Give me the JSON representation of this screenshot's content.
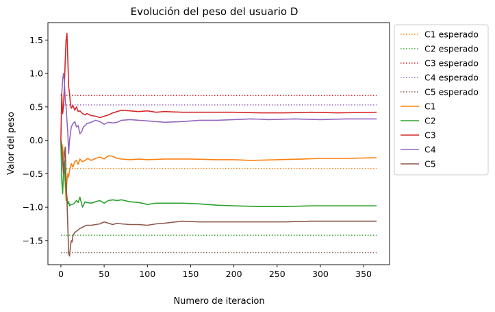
{
  "chart_data": {
    "type": "line",
    "title": "Evolución del peso del usuario D",
    "xlabel": "Numero de iteracion",
    "ylabel": "Valor del peso",
    "xlim": [
      -15,
      380
    ],
    "ylim": [
      -1.86,
      1.76
    ],
    "xticks": [
      0,
      50,
      100,
      150,
      200,
      250,
      300,
      350
    ],
    "yticks": [
      -1.5,
      -1.0,
      -0.5,
      0.0,
      0.5,
      1.0,
      1.5
    ],
    "ytick_labels": [
      "−1.5",
      "−1.0",
      "−0.5",
      "0.0",
      "0.5",
      "1.0",
      "1.5"
    ],
    "grid": false,
    "legend_position": "outside-right-top",
    "expected_lines": [
      {
        "name": "C1 esperado",
        "color": "#ff7f0e",
        "value": -0.42,
        "x": [
          0,
          365
        ]
      },
      {
        "name": "C2 esperado",
        "color": "#2ca02c",
        "value": -1.42,
        "x": [
          0,
          365
        ]
      },
      {
        "name": "C3 esperado",
        "color": "#d62728",
        "value": 0.67,
        "x": [
          0,
          365
        ]
      },
      {
        "name": "C4 esperado",
        "color": "#9467bd",
        "value": 0.53,
        "x": [
          0,
          365
        ]
      },
      {
        "name": "C5 esperado",
        "color": "#8c564b",
        "value": -1.68,
        "x": [
          0,
          365
        ]
      }
    ],
    "series": [
      {
        "name": "C1",
        "color": "#ff7f0e",
        "points": [
          [
            0,
            0.0
          ],
          [
            2,
            -0.1
          ],
          [
            4,
            -0.4
          ],
          [
            6,
            -0.9
          ],
          [
            7,
            -0.6
          ],
          [
            8,
            -0.5
          ],
          [
            9,
            -0.55
          ],
          [
            10,
            -0.45
          ],
          [
            12,
            -0.35
          ],
          [
            14,
            -0.4
          ],
          [
            16,
            -0.32
          ],
          [
            18,
            -0.3
          ],
          [
            20,
            -0.36
          ],
          [
            22,
            -0.28
          ],
          [
            25,
            -0.32
          ],
          [
            28,
            -0.3
          ],
          [
            31,
            -0.27
          ],
          [
            35,
            -0.3
          ],
          [
            40,
            -0.27
          ],
          [
            45,
            -0.25
          ],
          [
            50,
            -0.28
          ],
          [
            55,
            -0.23
          ],
          [
            60,
            -0.24
          ],
          [
            65,
            -0.27
          ],
          [
            70,
            -0.28
          ],
          [
            80,
            -0.29
          ],
          [
            90,
            -0.28
          ],
          [
            100,
            -0.29
          ],
          [
            120,
            -0.28
          ],
          [
            150,
            -0.28
          ],
          [
            180,
            -0.29
          ],
          [
            200,
            -0.29
          ],
          [
            220,
            -0.3
          ],
          [
            250,
            -0.29
          ],
          [
            280,
            -0.28
          ],
          [
            300,
            -0.27
          ],
          [
            330,
            -0.27
          ],
          [
            365,
            -0.26
          ]
        ]
      },
      {
        "name": "C2",
        "color": "#2ca02c",
        "points": [
          [
            0,
            0.0
          ],
          [
            1,
            -0.6
          ],
          [
            2,
            -0.8
          ],
          [
            3,
            -0.5
          ],
          [
            4,
            -0.3
          ],
          [
            5,
            -0.6
          ],
          [
            6,
            -0.75
          ],
          [
            7,
            -0.85
          ],
          [
            8,
            -0.95
          ],
          [
            9,
            -0.92
          ],
          [
            10,
            -0.98
          ],
          [
            12,
            -0.96
          ],
          [
            15,
            -0.95
          ],
          [
            18,
            -0.9
          ],
          [
            20,
            -0.93
          ],
          [
            22,
            -0.85
          ],
          [
            25,
            -1.0
          ],
          [
            28,
            -0.92
          ],
          [
            30,
            -0.93
          ],
          [
            35,
            -0.94
          ],
          [
            40,
            -0.92
          ],
          [
            45,
            -0.9
          ],
          [
            50,
            -0.94
          ],
          [
            55,
            -0.9
          ],
          [
            60,
            -0.89
          ],
          [
            65,
            -0.9
          ],
          [
            70,
            -0.89
          ],
          [
            80,
            -0.92
          ],
          [
            90,
            -0.93
          ],
          [
            100,
            -0.96
          ],
          [
            110,
            -0.94
          ],
          [
            120,
            -0.94
          ],
          [
            140,
            -0.94
          ],
          [
            160,
            -0.95
          ],
          [
            180,
            -0.97
          ],
          [
            200,
            -0.98
          ],
          [
            230,
            -0.99
          ],
          [
            260,
            -0.99
          ],
          [
            290,
            -0.98
          ],
          [
            320,
            -0.98
          ],
          [
            365,
            -0.98
          ]
        ]
      },
      {
        "name": "C3",
        "color": "#d62728",
        "points": [
          [
            0,
            0.0
          ],
          [
            1,
            0.7
          ],
          [
            2,
            0.4
          ],
          [
            3,
            0.5
          ],
          [
            4,
            0.8
          ],
          [
            5,
            1.2
          ],
          [
            6,
            1.5
          ],
          [
            7,
            1.6
          ],
          [
            8,
            1.2
          ],
          [
            9,
            0.8
          ],
          [
            10,
            0.7
          ],
          [
            11,
            0.55
          ],
          [
            12,
            0.48
          ],
          [
            14,
            0.52
          ],
          [
            16,
            0.45
          ],
          [
            18,
            0.5
          ],
          [
            20,
            0.43
          ],
          [
            22,
            0.44
          ],
          [
            25,
            0.4
          ],
          [
            28,
            0.38
          ],
          [
            30,
            0.4
          ],
          [
            35,
            0.37
          ],
          [
            40,
            0.36
          ],
          [
            45,
            0.34
          ],
          [
            50,
            0.36
          ],
          [
            55,
            0.38
          ],
          [
            60,
            0.41
          ],
          [
            65,
            0.43
          ],
          [
            70,
            0.45
          ],
          [
            80,
            0.44
          ],
          [
            90,
            0.43
          ],
          [
            100,
            0.44
          ],
          [
            110,
            0.42
          ],
          [
            120,
            0.43
          ],
          [
            140,
            0.42
          ],
          [
            160,
            0.42
          ],
          [
            180,
            0.42
          ],
          [
            200,
            0.42
          ],
          [
            230,
            0.41
          ],
          [
            260,
            0.41
          ],
          [
            290,
            0.42
          ],
          [
            320,
            0.41
          ],
          [
            365,
            0.42
          ]
        ]
      },
      {
        "name": "C4",
        "color": "#9467bd",
        "points": [
          [
            0,
            0.67
          ],
          [
            1,
            0.7
          ],
          [
            2,
            0.9
          ],
          [
            3,
            1.0
          ],
          [
            4,
            0.9
          ],
          [
            5,
            0.6
          ],
          [
            6,
            0.5
          ],
          [
            7,
            0.3
          ],
          [
            8,
            0.1
          ],
          [
            9,
            -0.2
          ],
          [
            10,
            0.0
          ],
          [
            12,
            0.2
          ],
          [
            14,
            0.25
          ],
          [
            16,
            0.28
          ],
          [
            18,
            0.2
          ],
          [
            20,
            0.22
          ],
          [
            22,
            0.1
          ],
          [
            24,
            0.13
          ],
          [
            26,
            0.2
          ],
          [
            28,
            0.22
          ],
          [
            30,
            0.25
          ],
          [
            35,
            0.27
          ],
          [
            40,
            0.3
          ],
          [
            45,
            0.28
          ],
          [
            50,
            0.24
          ],
          [
            55,
            0.27
          ],
          [
            60,
            0.26
          ],
          [
            65,
            0.27
          ],
          [
            70,
            0.3
          ],
          [
            80,
            0.31
          ],
          [
            90,
            0.3
          ],
          [
            100,
            0.29
          ],
          [
            110,
            0.28
          ],
          [
            120,
            0.27
          ],
          [
            140,
            0.28
          ],
          [
            160,
            0.3
          ],
          [
            180,
            0.3
          ],
          [
            200,
            0.31
          ],
          [
            220,
            0.32
          ],
          [
            240,
            0.31
          ],
          [
            270,
            0.32
          ],
          [
            300,
            0.31
          ],
          [
            330,
            0.32
          ],
          [
            365,
            0.32
          ]
        ]
      },
      {
        "name": "C5",
        "color": "#8c564b",
        "points": [
          [
            0,
            0.0
          ],
          [
            1,
            -0.1
          ],
          [
            2,
            -0.3
          ],
          [
            3,
            -0.5
          ],
          [
            4,
            -0.2
          ],
          [
            5,
            -0.1
          ],
          [
            6,
            -0.6
          ],
          [
            7,
            -0.9
          ],
          [
            8,
            -1.3
          ],
          [
            9,
            -1.7
          ],
          [
            10,
            -1.73
          ],
          [
            11,
            -1.6
          ],
          [
            12,
            -1.5
          ],
          [
            13,
            -1.52
          ],
          [
            14,
            -1.42
          ],
          [
            16,
            -1.38
          ],
          [
            18,
            -1.36
          ],
          [
            20,
            -1.34
          ],
          [
            22,
            -1.32
          ],
          [
            25,
            -1.3
          ],
          [
            28,
            -1.28
          ],
          [
            30,
            -1.27
          ],
          [
            35,
            -1.27
          ],
          [
            40,
            -1.26
          ],
          [
            45,
            -1.25
          ],
          [
            50,
            -1.22
          ],
          [
            55,
            -1.24
          ],
          [
            60,
            -1.26
          ],
          [
            65,
            -1.24
          ],
          [
            70,
            -1.25
          ],
          [
            80,
            -1.26
          ],
          [
            90,
            -1.26
          ],
          [
            100,
            -1.27
          ],
          [
            110,
            -1.25
          ],
          [
            120,
            -1.24
          ],
          [
            140,
            -1.21
          ],
          [
            160,
            -1.22
          ],
          [
            180,
            -1.22
          ],
          [
            200,
            -1.22
          ],
          [
            230,
            -1.22
          ],
          [
            260,
            -1.22
          ],
          [
            290,
            -1.21
          ],
          [
            320,
            -1.21
          ],
          [
            365,
            -1.21
          ]
        ]
      }
    ]
  }
}
